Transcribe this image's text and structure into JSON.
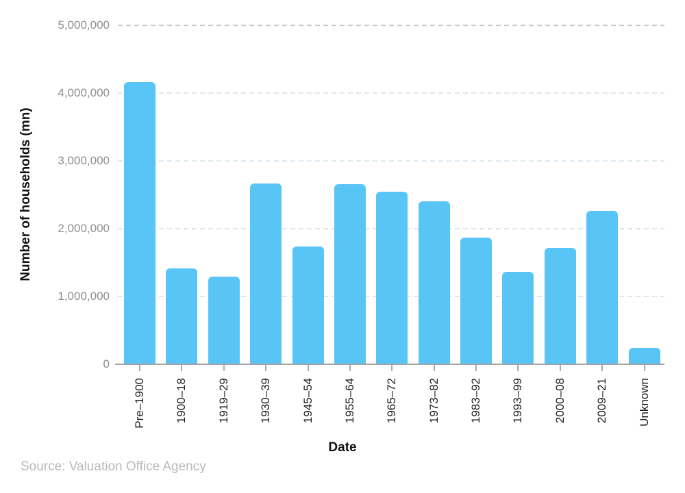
{
  "chart_data": {
    "type": "bar",
    "title": "",
    "categories": [
      "Pre–1900",
      "1900–18",
      "1919–29",
      "1930–39",
      "1945–54",
      "1955–64",
      "1965–72",
      "1973–82",
      "1983–92",
      "1993–99",
      "2000–08",
      "2009–21",
      "Unknown"
    ],
    "values": [
      4160000,
      1410000,
      1290000,
      2660000,
      1730000,
      2650000,
      2540000,
      2400000,
      1860000,
      1360000,
      1710000,
      2260000,
      240000
    ],
    "xlabel": "Date",
    "ylabel": "Number of households (mn)",
    "ylim": [
      0,
      5000000
    ],
    "yticks": [
      0,
      1000000,
      2000000,
      3000000,
      4000000,
      5000000
    ],
    "ytick_labels": [
      "0",
      "1,000,000",
      "2,000,000",
      "3,000,000",
      "4,000,000",
      "5,000,000"
    ],
    "grid": "horizontal-dashed",
    "legend": "none",
    "bar_color": "#58C5F6",
    "gridline_color": "#dce8ef",
    "top_gridline_color": "#c9c9c9",
    "axis_line_color": "#a3a3a3"
  },
  "footer": {
    "source": "Source: Valuation Office Agency"
  }
}
